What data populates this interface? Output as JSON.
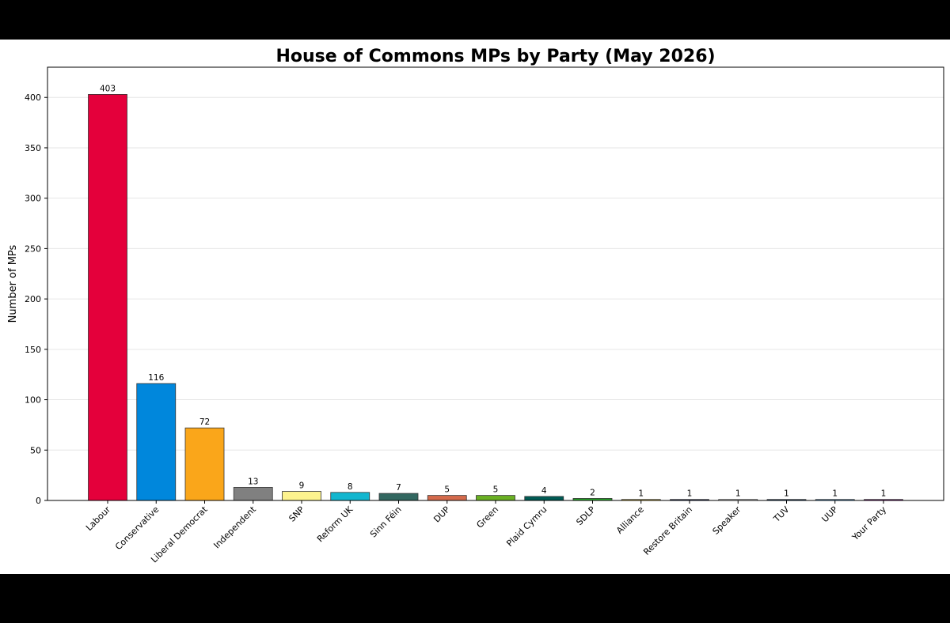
{
  "chart_data": {
    "type": "bar",
    "title": "House of Commons MPs by Party (May 2026)",
    "xlabel": "",
    "ylabel": "Number of MPs",
    "ylim": [
      0,
      430
    ],
    "yticks": [
      0,
      50,
      100,
      150,
      200,
      250,
      300,
      350,
      400
    ],
    "grid": "horizontal",
    "categories": [
      "Labour",
      "Conservative",
      "Liberal Democrat",
      "Independent",
      "SNP",
      "Reform UK",
      "Sinn Féin",
      "DUP",
      "Green",
      "Plaid Cymru",
      "SDLP",
      "Alliance",
      "Restore Britain",
      "Speaker",
      "TUV",
      "UUP",
      "Your Party"
    ],
    "values": [
      403,
      116,
      72,
      13,
      9,
      8,
      7,
      5,
      5,
      4,
      2,
      1,
      1,
      1,
      1,
      1,
      1
    ],
    "value_labels": [
      "403",
      "116",
      "72",
      "13",
      "9",
      "8",
      "7",
      "5",
      "5",
      "4",
      "2",
      "1",
      "1",
      "1",
      "1",
      "1",
      "1"
    ],
    "colors": [
      "#E4003B",
      "#0087DC",
      "#FAA61A",
      "#808080",
      "#FDF38E",
      "#12B6CF",
      "#326760",
      "#D46A4C",
      "#6AB023",
      "#005B54",
      "#2AA82C",
      "#F6CB2F",
      "#1C2A5C",
      "#FFFFFF",
      "#0C3A6A",
      "#48A5EE",
      "#800080"
    ]
  }
}
